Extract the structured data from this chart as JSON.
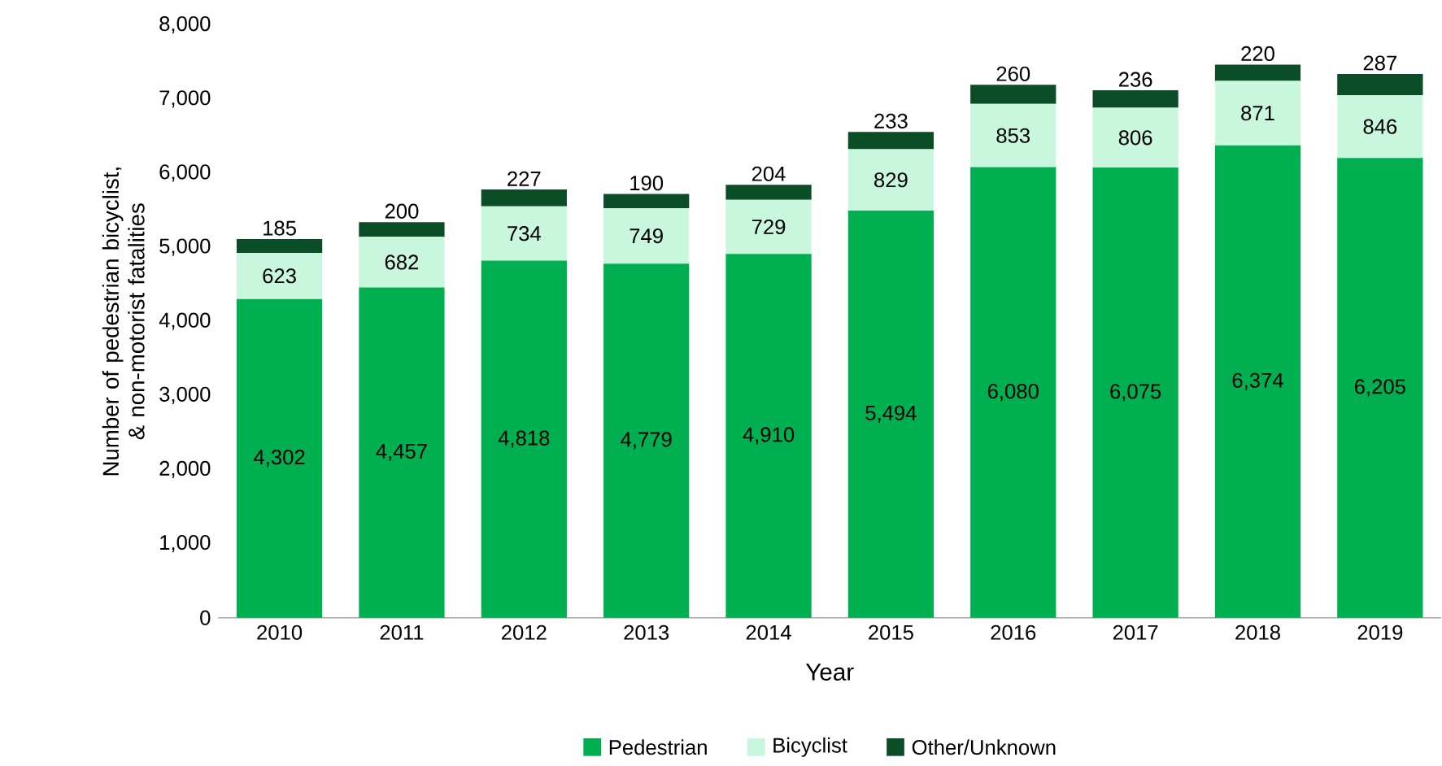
{
  "chart_data": {
    "type": "bar",
    "stacked": true,
    "xlabel": "Year",
    "ylabel": "Number of pedestrian bicyclist, & non-motorist fatalities",
    "categories": [
      "2010",
      "2011",
      "2012",
      "2013",
      "2014",
      "2015",
      "2016",
      "2017",
      "2018",
      "2019"
    ],
    "series": [
      {
        "name": "Pedestrian",
        "color": "#00b050",
        "values": [
          4302,
          4457,
          4818,
          4779,
          4910,
          5494,
          6080,
          6075,
          6374,
          6205
        ],
        "value_labels": [
          "4,302",
          "4,457",
          "4,818",
          "4,779",
          "4,910",
          "5,494",
          "6,080",
          "6,075",
          "6,374",
          "6,205"
        ]
      },
      {
        "name": "Bicyclist",
        "color": "#c9f7dd",
        "values": [
          623,
          682,
          734,
          749,
          729,
          829,
          853,
          806,
          871,
          846
        ],
        "value_labels": [
          "623",
          "682",
          "734",
          "749",
          "729",
          "829",
          "853",
          "806",
          "871",
          "846"
        ]
      },
      {
        "name": "Other/Unknown",
        "color": "#0a4d27",
        "values": [
          185,
          200,
          227,
          190,
          204,
          233,
          260,
          236,
          220,
          287
        ],
        "value_labels": [
          "185",
          "200",
          "227",
          "190",
          "204",
          "233",
          "260",
          "236",
          "220",
          "287"
        ]
      }
    ],
    "ylim": [
      0,
      8000
    ],
    "yticks": [
      0,
      {
        "value": 1000,
        "label": "1,000"
      },
      {
        "value": 2000,
        "label": "2,000"
      },
      {
        "value": 3000,
        "label": "3,000"
      },
      {
        "value": 4000,
        "label": "4,000"
      },
      {
        "value": 5000,
        "label": "5,000"
      },
      {
        "value": 6000,
        "label": "6,000"
      },
      {
        "value": 7000,
        "label": "7,000"
      },
      {
        "value": 8000,
        "label": "8,000"
      }
    ],
    "grid": false,
    "legend": "bottom"
  }
}
